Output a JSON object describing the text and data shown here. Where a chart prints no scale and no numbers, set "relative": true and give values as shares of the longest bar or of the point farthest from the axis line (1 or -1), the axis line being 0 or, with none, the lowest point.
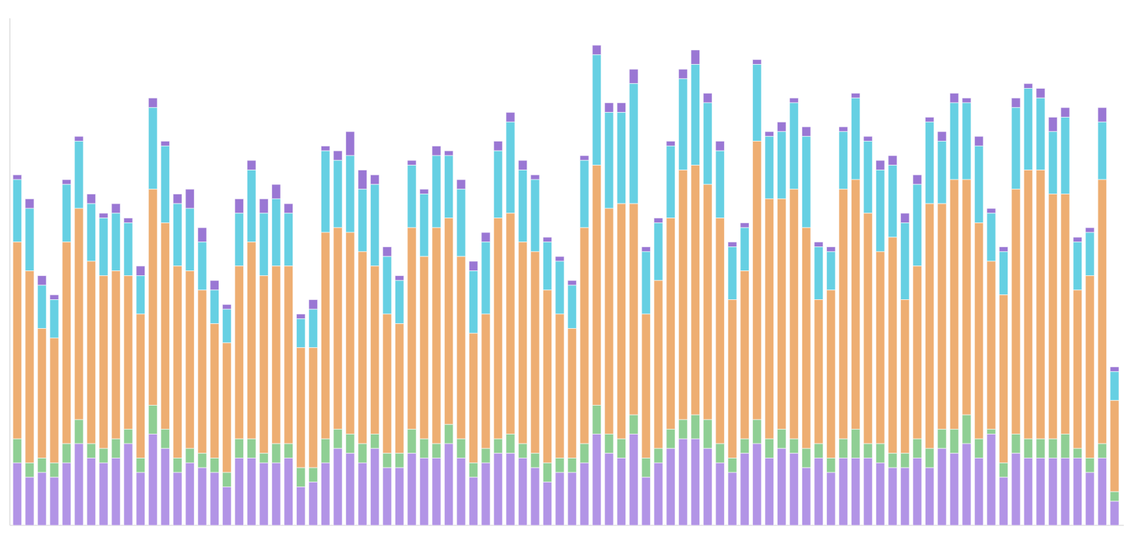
{
  "chart_data": {
    "type": "bar",
    "stacked": true,
    "relative": true,
    "categories": [
      null,
      null,
      null,
      null,
      null,
      null,
      null,
      null,
      null,
      null,
      null,
      null,
      null,
      null,
      null,
      null,
      null,
      null,
      null,
      null,
      null,
      null,
      null,
      null,
      null,
      null,
      null,
      null,
      null,
      null,
      null,
      null,
      null,
      null,
      null,
      null,
      null,
      null,
      null,
      null,
      null,
      null,
      null,
      null,
      null,
      null,
      null,
      null,
      null,
      null,
      null,
      null,
      null,
      null,
      null,
      null,
      null,
      null,
      null,
      null,
      null,
      null,
      null,
      null,
      null,
      null,
      null,
      null,
      null,
      null,
      null,
      null,
      null,
      null,
      null,
      null,
      null,
      null,
      null,
      null,
      null,
      null,
      null,
      null,
      null,
      null,
      null,
      null,
      null,
      null
    ],
    "series": [
      {
        "color": "#b294e6",
        "values": [
          0.13,
          0.1,
          0.11,
          0.1,
          0.13,
          0.17,
          0.14,
          0.13,
          0.14,
          0.17,
          0.11,
          0.19,
          0.16,
          0.11,
          0.13,
          0.12,
          0.11,
          0.08,
          0.14,
          0.14,
          0.13,
          0.13,
          0.14,
          0.08,
          0.09,
          0.13,
          0.16,
          0.15,
          0.13,
          0.16,
          0.12,
          0.12,
          0.15,
          0.14,
          0.14,
          0.17,
          0.14,
          0.1,
          0.13,
          0.15,
          0.15,
          0.14,
          0.12,
          0.09,
          0.11,
          0.11,
          0.13,
          0.19,
          0.15,
          0.14,
          0.19,
          0.1,
          0.13,
          0.16,
          0.18,
          0.18,
          0.16,
          0.13,
          0.11,
          0.15,
          0.17,
          0.14,
          0.16,
          0.15,
          0.12,
          0.14,
          0.11,
          0.14,
          0.14,
          0.14,
          0.13,
          0.12,
          0.12,
          0.14,
          0.12,
          0.16,
          0.15,
          0.17,
          0.14,
          0.19,
          0.1,
          0.15,
          0.14,
          0.14,
          0.14,
          0.14,
          0.14,
          0.11,
          0.14,
          0.05
        ]
      },
      {
        "color": "#8fcf94",
        "values": [
          0.05,
          0.03,
          0.03,
          0.03,
          0.04,
          0.05,
          0.03,
          0.03,
          0.04,
          0.03,
          0.03,
          0.06,
          0.04,
          0.03,
          0.03,
          0.03,
          0.03,
          0.03,
          0.04,
          0.04,
          0.02,
          0.04,
          0.03,
          0.04,
          0.03,
          0.05,
          0.04,
          0.04,
          0.04,
          0.03,
          0.03,
          0.03,
          0.05,
          0.04,
          0.03,
          0.04,
          0.04,
          0.03,
          0.03,
          0.03,
          0.04,
          0.03,
          0.03,
          0.04,
          0.03,
          0.03,
          0.04,
          0.06,
          0.04,
          0.04,
          0.04,
          0.04,
          0.03,
          0.04,
          0.04,
          0.05,
          0.06,
          0.04,
          0.03,
          0.03,
          0.05,
          0.04,
          0.04,
          0.03,
          0.04,
          0.03,
          0.03,
          0.04,
          0.06,
          0.03,
          0.04,
          0.03,
          0.03,
          0.04,
          0.04,
          0.04,
          0.05,
          0.06,
          0.04,
          0.01,
          0.03,
          0.04,
          0.04,
          0.04,
          0.04,
          0.05,
          0.02,
          0.03,
          0.03,
          0.02
        ]
      },
      {
        "color": "#eeae72",
        "values": [
          0.41,
          0.4,
          0.27,
          0.26,
          0.42,
          0.44,
          0.38,
          0.36,
          0.35,
          0.32,
          0.3,
          0.45,
          0.43,
          0.4,
          0.37,
          0.34,
          0.28,
          0.27,
          0.36,
          0.41,
          0.37,
          0.37,
          0.37,
          0.25,
          0.25,
          0.43,
          0.42,
          0.42,
          0.4,
          0.35,
          0.29,
          0.27,
          0.42,
          0.38,
          0.45,
          0.43,
          0.38,
          0.27,
          0.28,
          0.46,
          0.46,
          0.42,
          0.42,
          0.36,
          0.3,
          0.27,
          0.45,
          0.5,
          0.47,
          0.49,
          0.44,
          0.3,
          0.35,
          0.44,
          0.52,
          0.52,
          0.49,
          0.47,
          0.33,
          0.35,
          0.58,
          0.5,
          0.48,
          0.52,
          0.46,
          0.3,
          0.35,
          0.52,
          0.52,
          0.48,
          0.4,
          0.45,
          0.32,
          0.36,
          0.51,
          0.47,
          0.52,
          0.49,
          0.45,
          0.35,
          0.35,
          0.51,
          0.56,
          0.56,
          0.51,
          0.5,
          0.33,
          0.38,
          0.55,
          0.19
        ]
      },
      {
        "color": "#66d0e3",
        "values": [
          0.13,
          0.13,
          0.09,
          0.08,
          0.12,
          0.14,
          0.12,
          0.12,
          0.12,
          0.11,
          0.08,
          0.17,
          0.16,
          0.13,
          0.13,
          0.1,
          0.07,
          0.07,
          0.11,
          0.15,
          0.13,
          0.14,
          0.11,
          0.06,
          0.08,
          0.17,
          0.14,
          0.16,
          0.13,
          0.17,
          0.12,
          0.09,
          0.13,
          0.13,
          0.15,
          0.13,
          0.14,
          0.13,
          0.15,
          0.14,
          0.19,
          0.15,
          0.15,
          0.1,
          0.11,
          0.09,
          0.14,
          0.23,
          0.2,
          0.19,
          0.25,
          0.13,
          0.12,
          0.15,
          0.19,
          0.21,
          0.17,
          0.14,
          0.11,
          0.09,
          0.16,
          0.13,
          0.14,
          0.18,
          0.19,
          0.11,
          0.08,
          0.12,
          0.17,
          0.15,
          0.17,
          0.15,
          0.16,
          0.17,
          0.17,
          0.13,
          0.16,
          0.16,
          0.16,
          0.1,
          0.09,
          0.17,
          0.17,
          0.15,
          0.13,
          0.16,
          0.1,
          0.09,
          0.12,
          0.06
        ]
      },
      {
        "color": "#9a77d4",
        "values": [
          0.01,
          0.02,
          0.02,
          0.01,
          0.01,
          0.01,
          0.02,
          0.01,
          0.02,
          0.01,
          0.02,
          0.02,
          0.01,
          0.02,
          0.04,
          0.03,
          0.02,
          0.01,
          0.03,
          0.02,
          0.03,
          0.03,
          0.02,
          0.01,
          0.02,
          0.01,
          0.02,
          0.05,
          0.04,
          0.02,
          0.02,
          0.01,
          0.01,
          0.01,
          0.02,
          0.01,
          0.02,
          0.02,
          0.02,
          0.02,
          0.02,
          0.02,
          0.01,
          0.01,
          0.01,
          0.01,
          0.01,
          0.02,
          0.02,
          0.02,
          0.03,
          0.01,
          0.01,
          0.01,
          0.02,
          0.03,
          0.02,
          0.02,
          0.01,
          0.01,
          0.01,
          0.01,
          0.02,
          0.01,
          0.02,
          0.01,
          0.01,
          0.01,
          0.01,
          0.01,
          0.02,
          0.02,
          0.02,
          0.02,
          0.01,
          0.02,
          0.02,
          0.01,
          0.02,
          0.01,
          0.01,
          0.02,
          0.01,
          0.02,
          0.03,
          0.02,
          0.01,
          0.01,
          0.03,
          0.01
        ]
      }
    ]
  }
}
